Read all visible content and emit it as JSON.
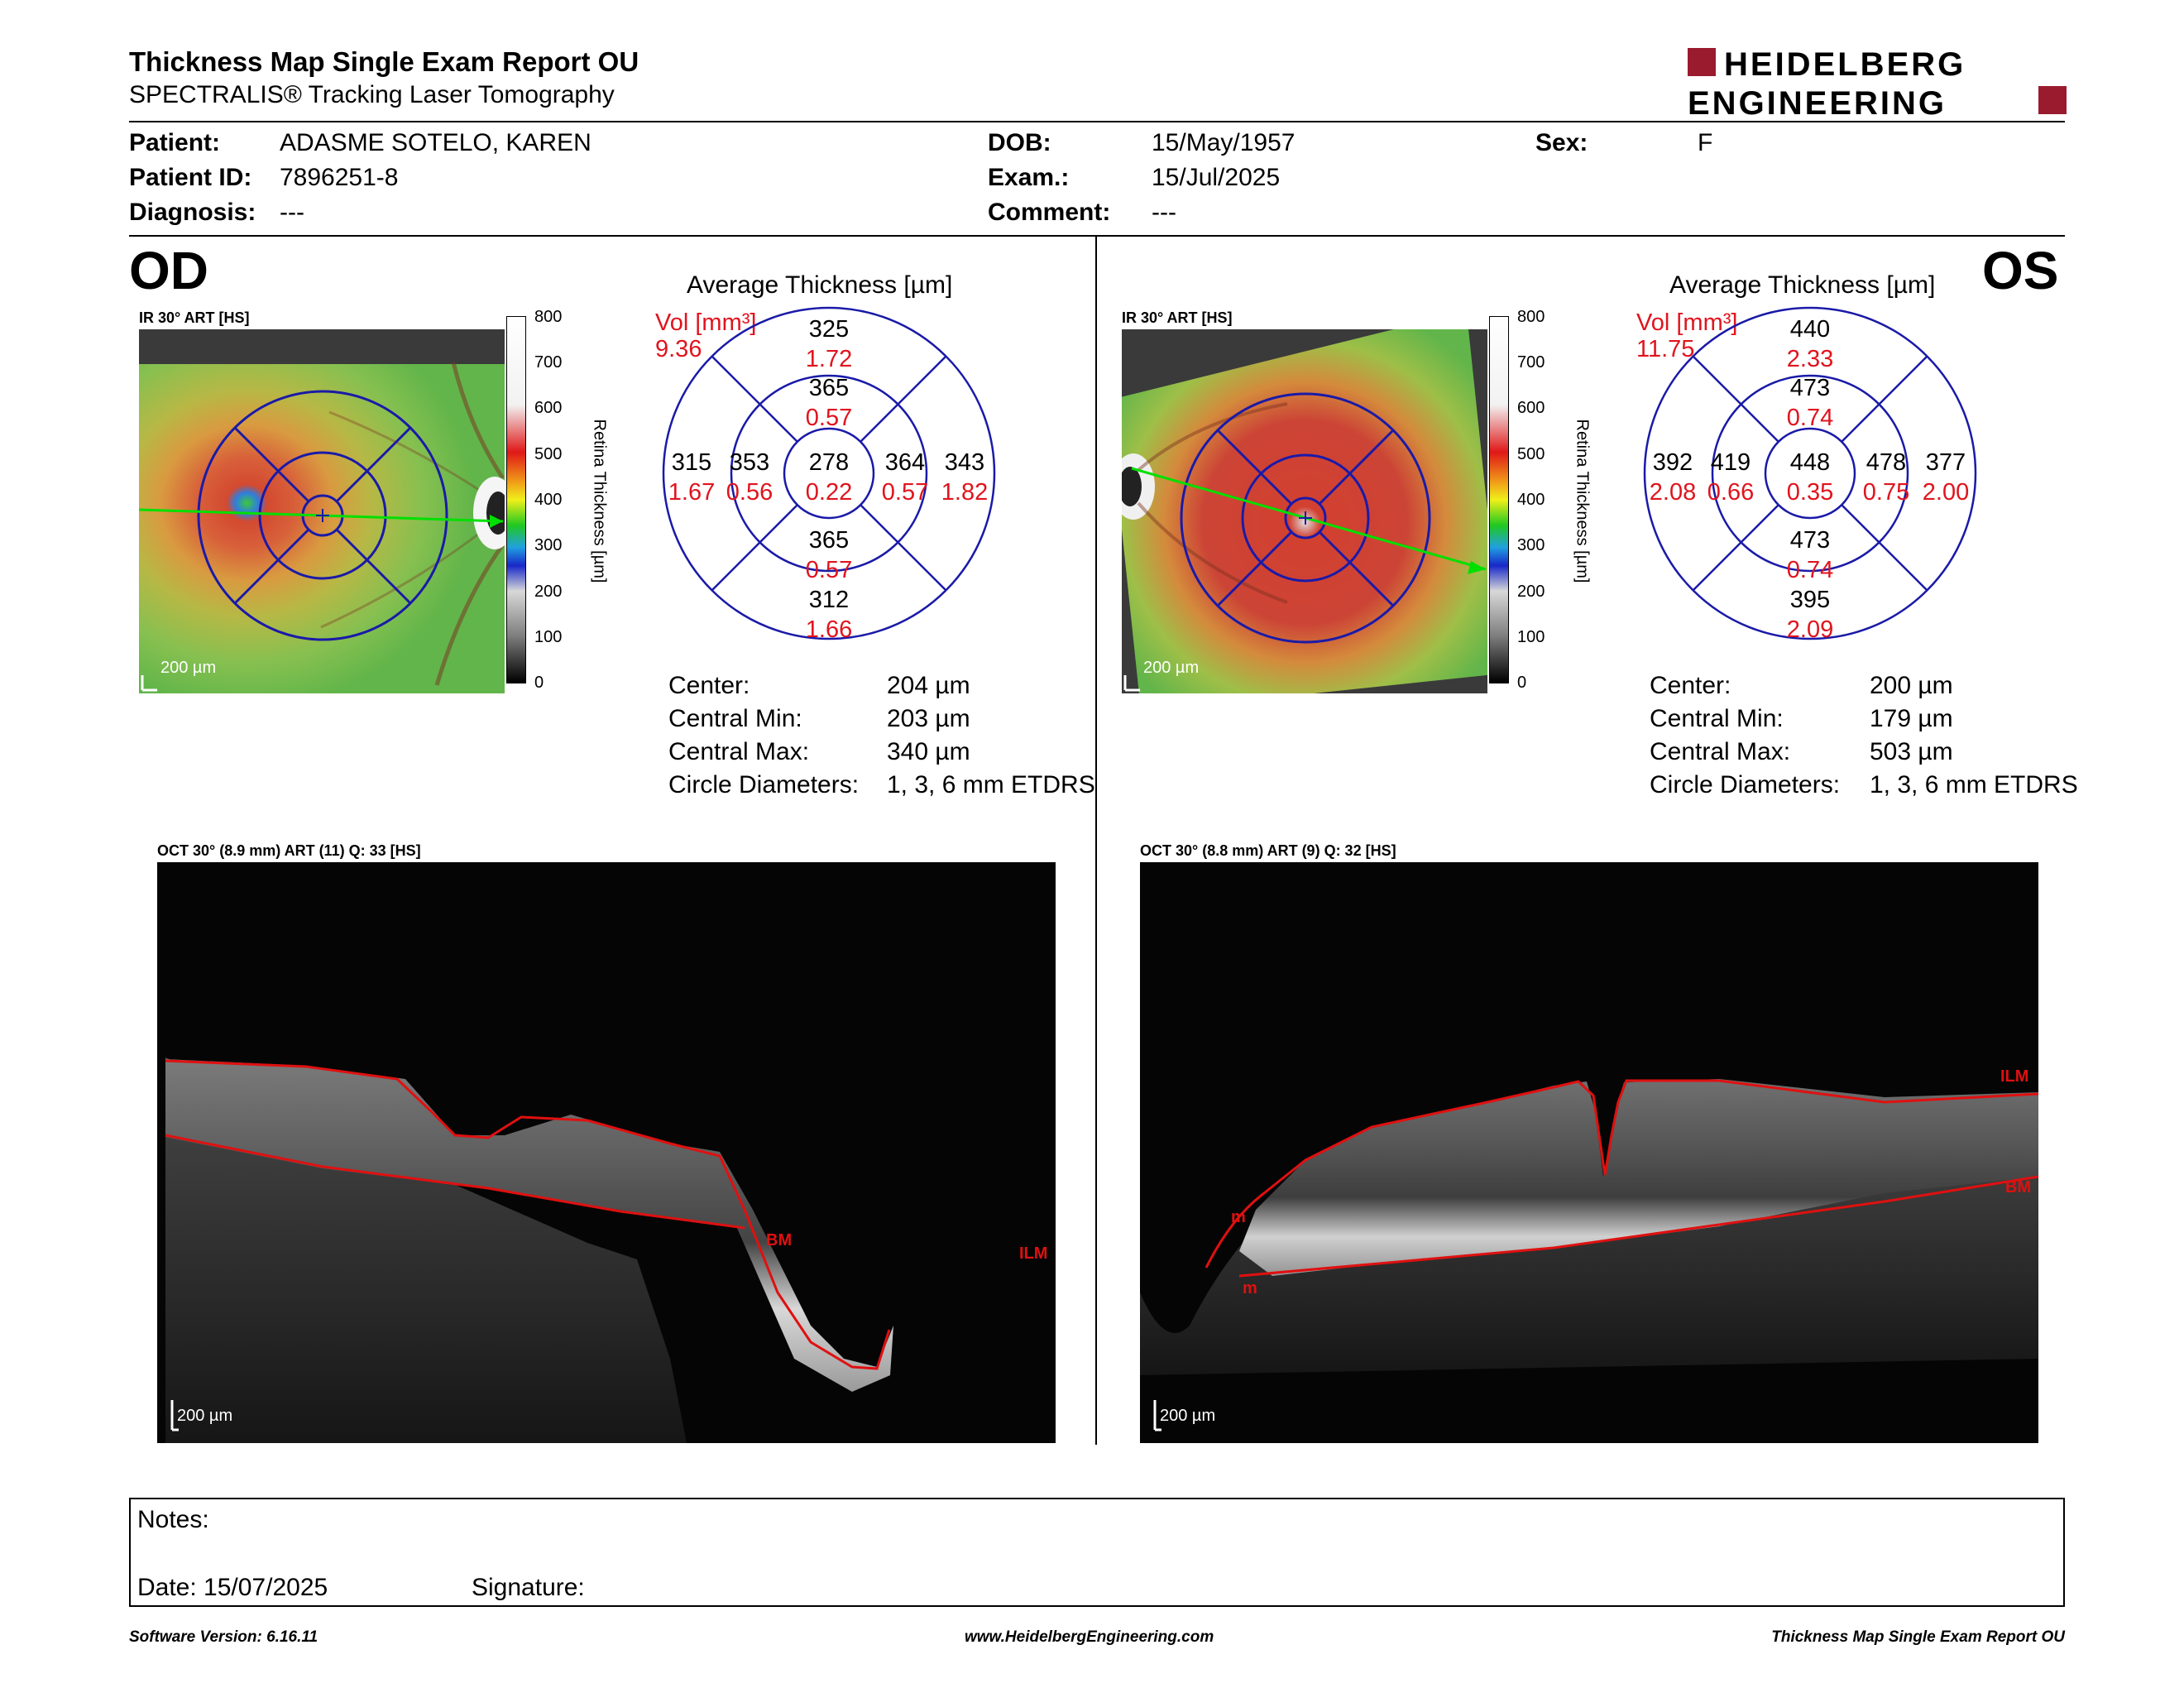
{
  "header": {
    "title": "Thickness Map Single Exam Report OU",
    "subtitle": "SPECTRALIS® Tracking Laser Tomography",
    "logo_line1": "HEIDELBERG",
    "logo_line2": "ENGINEERING"
  },
  "patient": {
    "patient_label": "Patient:",
    "patient_value": "ADASME SOTELO, KAREN",
    "id_label": "Patient ID:",
    "id_value": "7896251-8",
    "diagnosis_label": "Diagnosis:",
    "diagnosis_value": "---",
    "dob_label": "DOB:",
    "dob_value": "15/May/1957",
    "exam_label": "Exam.:",
    "exam_value": "15/Jul/2025",
    "comment_label": "Comment:",
    "comment_value": "---",
    "sex_label": "Sex:",
    "sex_value": "F"
  },
  "colors": {
    "vol_red": "#e0141e",
    "grid_blue": "#1a1aa8",
    "logo_red": "#9a1b2e",
    "segment_red": "#e01010",
    "scan_green": "#00e000"
  },
  "scale": {
    "label": "Retina Thickness [µm]",
    "ticks": [
      "800",
      "700",
      "600",
      "500",
      "400",
      "300",
      "200",
      "100",
      "0"
    ]
  },
  "od": {
    "eye": "OD",
    "ir_label": "IR 30° ART [HS]",
    "ir_scale": "200 µm",
    "avg_title": "Average Thickness [µm]",
    "vol_label": "Vol [mm³]",
    "vol_total": "9.36",
    "sectors": {
      "outer_sup": {
        "t": "325",
        "v": "1.72"
      },
      "inner_sup": {
        "t": "365",
        "v": "0.57"
      },
      "center": {
        "t": "278",
        "v": "0.22"
      },
      "outer_temp": {
        "t": "315",
        "v": "1.67"
      },
      "inner_temp": {
        "t": "353",
        "v": "0.56"
      },
      "inner_nasal": {
        "t": "364",
        "v": "0.57"
      },
      "outer_nasal": {
        "t": "343",
        "v": "1.82"
      },
      "inner_inf": {
        "t": "365",
        "v": "0.57"
      },
      "outer_inf": {
        "t": "312",
        "v": "1.66"
      }
    },
    "stats": [
      {
        "label": "Center:",
        "value": "204 µm"
      },
      {
        "label": "Central Min:",
        "value": "203 µm"
      },
      {
        "label": "Central Max:",
        "value": "340 µm"
      },
      {
        "label": "Circle Diameters:",
        "value": "1, 3, 6 mm ETDRS"
      }
    ],
    "oct_label": "OCT 30° (8.9 mm) ART (11) Q: 33 [HS]",
    "oct_scale": "200 µm",
    "seg_labels": [
      "BM",
      "ILM"
    ]
  },
  "os": {
    "eye": "OS",
    "ir_label": "IR 30° ART [HS]",
    "ir_scale": "200 µm",
    "avg_title": "Average Thickness [µm]",
    "vol_label": "Vol [mm³]",
    "vol_total": "11.75",
    "sectors": {
      "outer_sup": {
        "t": "440",
        "v": "2.33"
      },
      "inner_sup": {
        "t": "473",
        "v": "0.74"
      },
      "center": {
        "t": "448",
        "v": "0.35"
      },
      "outer_temp": {
        "t": "392",
        "v": "2.08"
      },
      "inner_temp": {
        "t": "419",
        "v": "0.66"
      },
      "inner_nasal": {
        "t": "478",
        "v": "0.75"
      },
      "outer_nasal": {
        "t": "377",
        "v": "2.00"
      },
      "inner_inf": {
        "t": "473",
        "v": "0.74"
      },
      "outer_inf": {
        "t": "395",
        "v": "2.09"
      }
    },
    "stats": [
      {
        "label": "Center:",
        "value": "200 µm"
      },
      {
        "label": "Central Min:",
        "value": "179 µm"
      },
      {
        "label": "Central Max:",
        "value": "503 µm"
      },
      {
        "label": "Circle Diameters:",
        "value": "1, 3, 6 mm ETDRS"
      }
    ],
    "oct_label": "OCT 30° (8.8 mm) ART (9) Q: 32 [HS]",
    "oct_scale": "200 µm",
    "seg_labels": [
      "ILM",
      "BM",
      "m",
      "m"
    ]
  },
  "notes": {
    "notes_label": "Notes:",
    "date_label": "Date: 15/07/2025",
    "signature_label": "Signature:"
  },
  "footer": {
    "software": "Software Version: 6.16.11",
    "website": "www.HeidelbergEngineering.com",
    "report": "Thickness Map Single Exam Report OU"
  }
}
